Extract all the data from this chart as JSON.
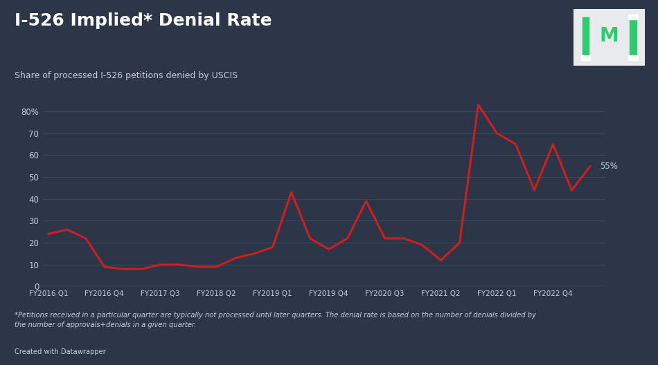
{
  "title": "I-526 Implied* Denial Rate",
  "subtitle": "Share of processed I-526 petitions denied by USCIS",
  "footnote": "*Petitions received in a particular quarter are typically not processed until later quarters. The denial rate is based on the number of denials divided by\nthe number of approvals+denials in a given quarter.",
  "credit": "Created with Datawrapper",
  "background_color": "#2d3549",
  "line_color": "#cc1f1f",
  "grid_color": "#3d4963",
  "text_color": "#c8cdd8",
  "title_color": "#ffffff",
  "x_labels": [
    "FY2016 Q1",
    "FY2016 Q4",
    "FY2017 Q3",
    "FY2018 Q2",
    "FY2019 Q1",
    "FY2019 Q4",
    "FY2020 Q3",
    "FY2021 Q2",
    "FY2022 Q1",
    "FY2022 Q4"
  ],
  "x_positions": [
    0,
    3,
    6,
    9,
    12,
    15,
    18,
    21,
    24,
    27
  ],
  "y_values": [
    24,
    26,
    22,
    9,
    8,
    8,
    10,
    10,
    9,
    9,
    13,
    15,
    18,
    43,
    22,
    17,
    22,
    39,
    22,
    22,
    19,
    12,
    20,
    83,
    70,
    65,
    44,
    65,
    44,
    55
  ],
  "x_data": [
    0,
    1,
    2,
    3,
    4,
    5,
    6,
    7,
    8,
    9,
    10,
    11,
    12,
    13,
    14,
    15,
    16,
    17,
    18,
    19,
    20,
    21,
    22,
    23,
    24,
    25,
    26,
    27,
    28,
    29
  ],
  "yticks": [
    0,
    10,
    20,
    30,
    40,
    50,
    60,
    70,
    80
  ],
  "ylim": [
    0,
    90
  ],
  "last_label": "55%",
  "logo_bg": "#e8eaed",
  "logo_green": "#2ecc71",
  "logo_bar_color": "#2d3549"
}
